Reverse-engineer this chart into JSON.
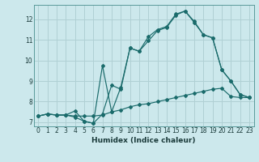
{
  "xlabel": "Humidex (Indice chaleur)",
  "background_color": "#cce8ec",
  "grid_color": "#b0d0d4",
  "line_color": "#1a6b6b",
  "xlim": [
    -0.5,
    23.5
  ],
  "ylim": [
    6.8,
    12.7
  ],
  "xticks": [
    0,
    1,
    2,
    3,
    4,
    5,
    6,
    7,
    8,
    9,
    10,
    11,
    12,
    13,
    14,
    15,
    16,
    17,
    18,
    19,
    20,
    21,
    22,
    23
  ],
  "yticks": [
    7,
    8,
    9,
    10,
    11,
    12
  ],
  "line1_x": [
    0,
    1,
    2,
    3,
    4,
    5,
    6,
    7,
    8,
    9,
    10,
    11,
    12,
    13,
    14,
    15,
    16,
    17,
    18,
    19,
    20,
    21,
    22,
    23
  ],
  "line1_y": [
    7.3,
    7.4,
    7.35,
    7.35,
    7.3,
    7.3,
    7.3,
    7.35,
    7.5,
    7.6,
    7.75,
    7.85,
    7.9,
    8.0,
    8.1,
    8.2,
    8.3,
    8.4,
    8.5,
    8.6,
    8.65,
    8.25,
    8.2,
    8.2
  ],
  "line2_x": [
    0,
    1,
    2,
    3,
    4,
    5,
    6,
    7,
    8,
    9,
    10,
    11,
    12,
    13,
    14,
    15,
    16,
    17,
    18,
    19,
    20,
    21,
    22,
    23
  ],
  "line2_y": [
    7.3,
    7.4,
    7.35,
    7.35,
    7.55,
    7.05,
    6.95,
    7.4,
    8.8,
    8.6,
    10.6,
    10.45,
    10.95,
    11.45,
    11.6,
    12.2,
    12.4,
    11.85,
    11.25,
    11.1,
    9.55,
    9.0,
    8.35,
    8.2
  ],
  "line3_x": [
    0,
    1,
    2,
    3,
    4,
    5,
    6,
    7,
    8,
    9,
    10,
    11,
    12,
    13,
    14,
    15,
    16,
    17,
    18,
    19,
    20,
    21,
    22,
    23
  ],
  "line3_y": [
    7.3,
    7.4,
    7.35,
    7.35,
    7.25,
    7.05,
    6.95,
    9.75,
    7.5,
    8.7,
    10.6,
    10.45,
    11.15,
    11.5,
    11.65,
    12.25,
    12.4,
    11.9,
    11.25,
    11.1,
    9.55,
    9.0,
    8.35,
    8.2
  ]
}
